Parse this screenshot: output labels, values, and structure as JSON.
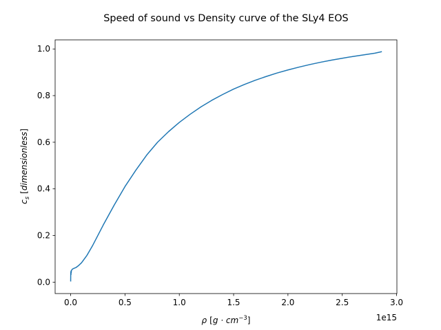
{
  "chart_data": {
    "type": "line",
    "title": "Speed of sound vs Density curve of the SLy4 EOS",
    "xlabel_parts": {
      "symbol": "ρ",
      "open": "[",
      "unit": "g · cm",
      "exp": "−3",
      "close": "]"
    },
    "ylabel_parts": {
      "symbol": "c",
      "sub": "s",
      "open": "[",
      "unit": "dimensionless",
      "close": "]"
    },
    "x_offset_label": "1e15",
    "x_ticks": [
      0.0,
      0.5,
      1.0,
      1.5,
      2.0,
      2.5,
      3.0
    ],
    "x_tick_labels": [
      "0.0",
      "0.5",
      "1.0",
      "1.5",
      "2.0",
      "2.5",
      "3.0"
    ],
    "y_ticks": [
      0.0,
      0.2,
      0.4,
      0.6,
      0.8,
      1.0
    ],
    "y_tick_labels": [
      "0.0",
      "0.2",
      "0.4",
      "0.6",
      "0.8",
      "1.0"
    ],
    "xlim": [
      -0.143,
      3.003
    ],
    "ylim": [
      -0.049,
      1.039
    ],
    "grid": false,
    "line_color": "#1f77b4",
    "series": [
      {
        "x": [
          0.0,
          0.0005,
          0.001,
          0.0015,
          0.002,
          0.003,
          0.004,
          0.005,
          0.007,
          0.01,
          0.015,
          0.02,
          0.03,
          0.05,
          0.07,
          0.1,
          0.15,
          0.2,
          0.25,
          0.3,
          0.4,
          0.5,
          0.6,
          0.7,
          0.8,
          0.9,
          1.0,
          1.1,
          1.2,
          1.3,
          1.4,
          1.5,
          1.6,
          1.7,
          1.8,
          1.9,
          2.0,
          2.1,
          2.2,
          2.3,
          2.4,
          2.5,
          2.6,
          2.7,
          2.8,
          2.86
        ],
        "y": [
          0.005,
          0.025,
          0.04,
          0.03,
          0.045,
          0.032,
          0.048,
          0.04,
          0.05,
          0.052,
          0.055,
          0.057,
          0.059,
          0.063,
          0.07,
          0.083,
          0.115,
          0.155,
          0.2,
          0.245,
          0.33,
          0.41,
          0.48,
          0.545,
          0.6,
          0.645,
          0.685,
          0.72,
          0.752,
          0.78,
          0.805,
          0.828,
          0.848,
          0.866,
          0.882,
          0.897,
          0.91,
          0.922,
          0.933,
          0.943,
          0.952,
          0.96,
          0.968,
          0.975,
          0.982,
          0.988
        ]
      }
    ]
  }
}
